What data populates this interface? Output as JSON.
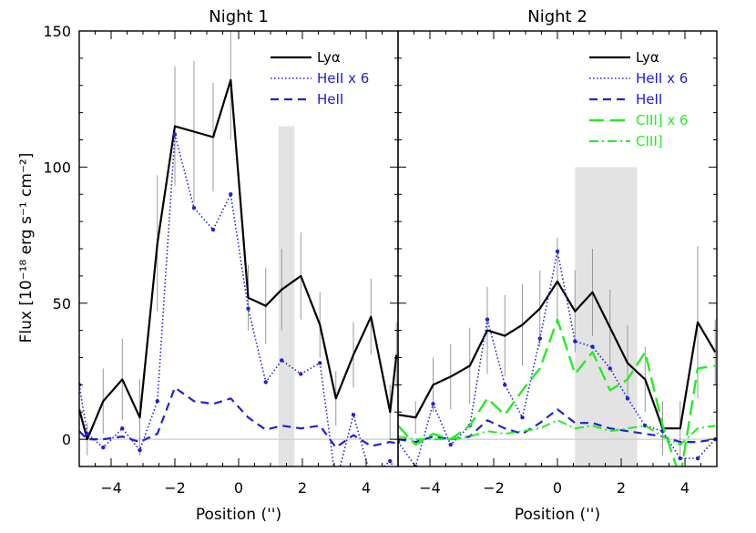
{
  "figure": {
    "ylabel": "Flux [10⁻¹⁸ erg s⁻¹ cm⁻²]",
    "xlabel": "Position ('')"
  },
  "colors": {
    "lya": "#000000",
    "heii": "#2020d8",
    "ciii": "#22ee22",
    "band": "#e3e3e3",
    "zero": "#cccccc",
    "errbar": "#999999"
  },
  "chart_data": [
    {
      "type": "line",
      "title": "Night 1",
      "xlabel": "Position ('')",
      "ylabel": "Flux [10⁻¹⁸ erg s⁻¹ cm⁻²]",
      "xlim": [
        -5,
        5
      ],
      "ylim": [
        -10,
        150
      ],
      "xticks": [
        -4,
        -2,
        0,
        2,
        4
      ],
      "yticks": [
        0,
        50,
        100,
        150
      ],
      "legend_position": "top-right",
      "shaded_regions": [
        {
          "x0": 1.25,
          "x1": 1.75,
          "y0": -10,
          "y1": 115
        }
      ],
      "series": [
        {
          "name": "Lyα",
          "style": "solid",
          "color": "#000000",
          "x": [
            -5.0,
            -4.75,
            -4.25,
            -3.65,
            -3.1,
            -2.55,
            -2.0,
            -1.4,
            -0.8,
            -0.25,
            0.3,
            0.85,
            1.35,
            1.95,
            2.55,
            3.05,
            3.6,
            4.15,
            4.75,
            4.95
          ],
          "y": [
            11,
            0,
            14,
            22,
            8,
            72,
            115,
            113,
            111,
            132,
            52,
            49,
            55,
            60,
            42,
            15,
            31,
            45,
            10,
            31
          ],
          "err": [
            8,
            6,
            12,
            15,
            14,
            25,
            22,
            26,
            20,
            22,
            12,
            14,
            15,
            16,
            12,
            10,
            12,
            14,
            10,
            12
          ]
        },
        {
          "name": "HeII x 6",
          "style": "dotted",
          "color": "#2020d8",
          "markers": true,
          "x": [
            -5.0,
            -4.75,
            -4.25,
            -3.65,
            -3.1,
            -2.55,
            -2.0,
            -1.4,
            -0.8,
            -0.25,
            0.3,
            0.85,
            1.35,
            1.95,
            2.55,
            3.05,
            3.6,
            4.15,
            4.75,
            4.95
          ],
          "y": [
            20,
            2,
            -3,
            4,
            -4,
            14,
            112,
            85,
            77,
            90,
            48,
            21,
            29,
            24,
            28,
            -16,
            9,
            -14,
            -8,
            -12
          ],
          "err": []
        },
        {
          "name": "HeII",
          "style": "dashed",
          "color": "#2020d8",
          "x": [
            -5.0,
            -4.75,
            -4.25,
            -3.65,
            -3.1,
            -2.55,
            -2.0,
            -1.4,
            -0.8,
            -0.25,
            0.3,
            0.85,
            1.35,
            1.95,
            2.55,
            3.05,
            3.6,
            4.15,
            4.75,
            4.95
          ],
          "y": [
            3,
            0,
            0,
            1,
            -1,
            2,
            19,
            14,
            13,
            15,
            8,
            3.5,
            5,
            4,
            5,
            -3,
            1.5,
            -2.5,
            -1,
            -1.5
          ],
          "err": []
        }
      ]
    },
    {
      "type": "line",
      "title": "Night 2",
      "xlabel": "Position ('')",
      "xlim": [
        -5,
        5
      ],
      "ylim": [
        -10,
        150
      ],
      "xticks": [
        -4,
        -2,
        0,
        2,
        4
      ],
      "yticks": [
        0,
        50,
        100,
        150
      ],
      "legend_position": "top-right",
      "shaded_regions": [
        {
          "x0": 0.55,
          "x1": 2.5,
          "y0": -10,
          "y1": 100
        }
      ],
      "series": [
        {
          "name": "Lyα",
          "style": "solid",
          "color": "#000000",
          "x": [
            -5.0,
            -4.45,
            -3.9,
            -3.35,
            -2.75,
            -2.2,
            -1.65,
            -1.1,
            -0.55,
            0.0,
            0.55,
            1.1,
            1.65,
            2.2,
            2.75,
            3.3,
            3.85,
            4.4,
            4.95
          ],
          "y": [
            9,
            8,
            20,
            23,
            27,
            40,
            38,
            42,
            48,
            58,
            47,
            54,
            41,
            28,
            22,
            4,
            4,
            43,
            32
          ],
          "err": [
            6,
            6,
            10,
            12,
            14,
            16,
            15,
            15,
            14,
            16,
            15,
            16,
            14,
            14,
            12,
            10,
            10,
            28,
            12
          ]
        },
        {
          "name": "HeII x 6",
          "style": "dotted",
          "color": "#2020d8",
          "markers": true,
          "x": [
            -5.0,
            -4.45,
            -3.9,
            -3.35,
            -2.75,
            -2.2,
            -1.65,
            -1.1,
            -0.55,
            0.0,
            0.55,
            1.1,
            1.65,
            2.2,
            2.75,
            3.3,
            3.85,
            4.4,
            4.95
          ],
          "y": [
            -1,
            -10,
            13,
            -2,
            5,
            44,
            20,
            8,
            37,
            69,
            36,
            34,
            26,
            15,
            5,
            3,
            -7,
            -7,
            0
          ],
          "err": []
        },
        {
          "name": "HeII",
          "style": "dashed",
          "color": "#2020d8",
          "x": [
            -5.0,
            -4.45,
            -3.9,
            -3.35,
            -2.75,
            -2.2,
            -1.65,
            -1.1,
            -0.55,
            0.0,
            0.55,
            1.1,
            1.65,
            2.2,
            2.75,
            3.3,
            3.85,
            4.4,
            4.95
          ],
          "y": [
            0,
            -1,
            1,
            0,
            1,
            7,
            4,
            2,
            6,
            11,
            6,
            6,
            4,
            3,
            2,
            1,
            -1,
            -1,
            0
          ],
          "err": []
        },
        {
          "name": "CIII] x 6",
          "style": "longdash",
          "color": "#22ee22",
          "x": [
            -5.0,
            -4.45,
            -3.9,
            -3.35,
            -2.75,
            -2.2,
            -1.65,
            -1.1,
            -0.55,
            0.0,
            0.55,
            1.1,
            1.65,
            2.2,
            2.75,
            3.3,
            3.85,
            4.4,
            4.95
          ],
          "y": [
            5,
            -2,
            2,
            0,
            5,
            15,
            9,
            18,
            26,
            44,
            24,
            32,
            18,
            22,
            32,
            5,
            -14,
            26,
            27
          ],
          "err": []
        },
        {
          "name": "CIII]",
          "style": "dashdot",
          "color": "#22ee22",
          "x": [
            -5.0,
            -4.45,
            -3.9,
            -3.35,
            -2.75,
            -2.2,
            -1.65,
            -1.1,
            -0.55,
            0.0,
            0.55,
            1.1,
            1.65,
            2.2,
            2.75,
            3.3,
            3.85,
            4.4,
            4.95
          ],
          "y": [
            1,
            0,
            0,
            0,
            1,
            3,
            2,
            3,
            4,
            7,
            4,
            5,
            3,
            4,
            5,
            1,
            -2,
            4,
            5
          ],
          "err": []
        }
      ]
    }
  ]
}
